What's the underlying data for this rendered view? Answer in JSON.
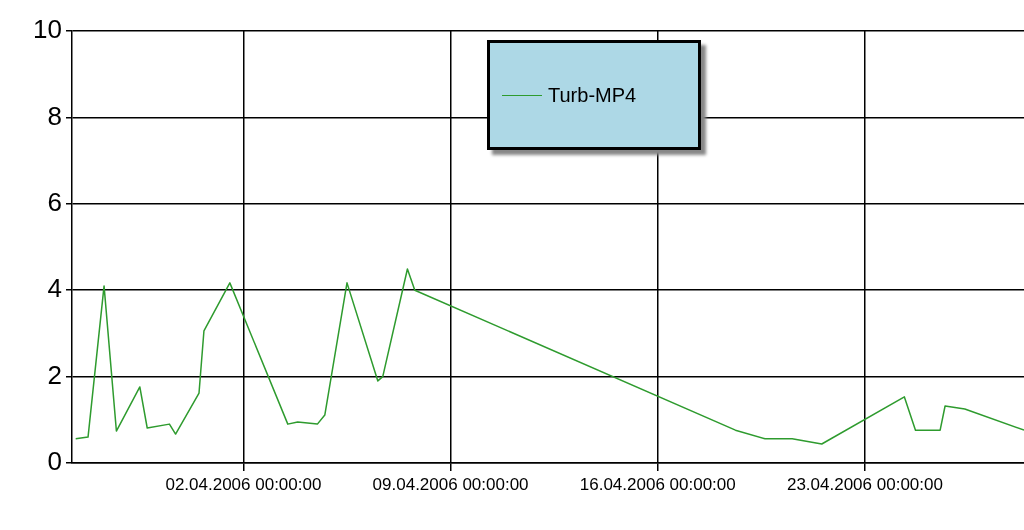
{
  "chart_data": {
    "type": "line",
    "x": [
      "2006-03-27T08:00",
      "2006-03-27T18:00",
      "2006-03-28T07:00",
      "2006-03-28T17:00",
      "2006-03-29T12:00",
      "2006-03-29T18:00",
      "2006-03-30T12:00",
      "2006-03-30T17:00",
      "2006-03-31T12:00",
      "2006-03-31T16:00",
      "2006-04-01T13:00",
      "2006-04-03T12:00",
      "2006-04-03T20:00",
      "2006-04-04T12:00",
      "2006-04-04T18:00",
      "2006-04-05T12:00",
      "2006-04-06T13:00",
      "2006-04-06T17:00",
      "2006-04-07T13:00",
      "2006-04-07T19:00",
      "2006-04-18T15:00",
      "2006-04-19T15:00",
      "2006-04-20T13:00",
      "2006-04-21T13:00",
      "2006-04-24T08:00",
      "2006-04-24T17:00",
      "2006-04-25T13:00",
      "2006-04-25T17:00",
      "2006-04-26T09:00",
      "2006-04-28T09:00"
    ],
    "series": [
      {
        "name": "Turb-MP4",
        "color": "#2e9b2e",
        "values": [
          0.56,
          0.6,
          4.1,
          0.74,
          1.76,
          0.81,
          0.9,
          0.67,
          1.62,
          3.06,
          4.17,
          0.9,
          0.95,
          0.9,
          1.11,
          4.17,
          1.9,
          2.0,
          4.49,
          4.0,
          0.76,
          0.56,
          0.56,
          0.44,
          1.53,
          0.76,
          0.76,
          1.32,
          1.25,
          0.76
        ]
      }
    ],
    "xlim": [
      "2006-03-27T05:00",
      "2006-04-28T09:00"
    ],
    "xticks": [
      {
        "value": "2006-04-02T00:00",
        "label": "02.04.2006 00:00:00"
      },
      {
        "value": "2006-04-09T00:00",
        "label": "09.04.2006 00:00:00"
      },
      {
        "value": "2006-04-16T00:00",
        "label": "16.04.2006 00:00:00"
      },
      {
        "value": "2006-04-23T00:00",
        "label": "23.04.2006 00:00:00"
      }
    ],
    "ylim": [
      0,
      10
    ],
    "yticks": [
      0,
      2,
      4,
      6,
      8,
      10
    ],
    "grid": true,
    "legend": "top",
    "marker": "none",
    "line_style": "solid"
  }
}
